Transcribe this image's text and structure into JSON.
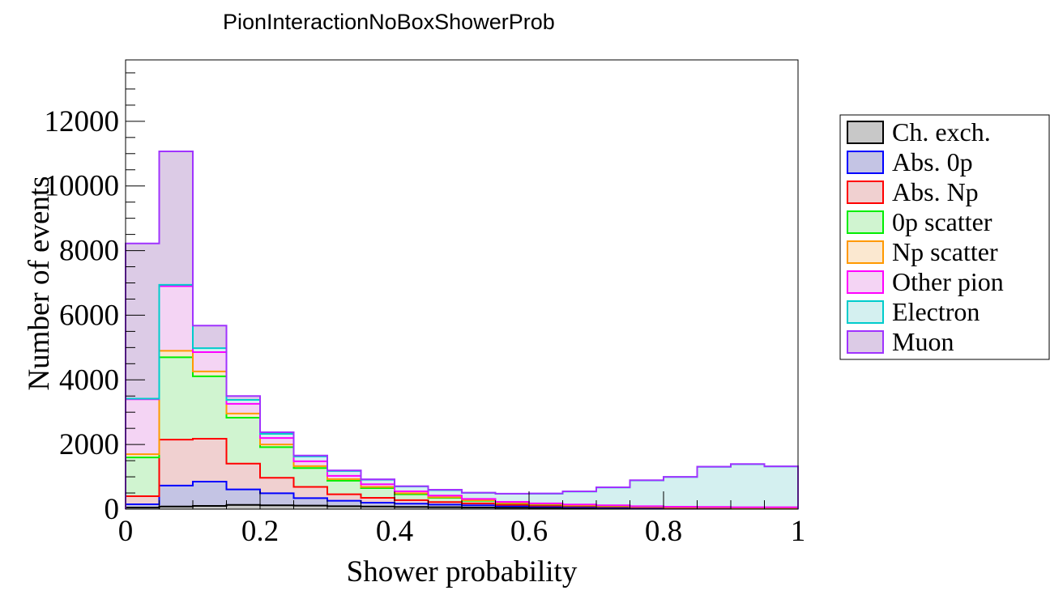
{
  "chart_data": {
    "type": "bar",
    "stacked": true,
    "histogram": true,
    "title": "PionInteractionNoBoxShowerProb",
    "xlabel": "Shower probability",
    "ylabel": "Number of events",
    "xlim": [
      0,
      1
    ],
    "ylim": [
      0,
      13900
    ],
    "bin_width": 0.05,
    "x_ticks": [
      0,
      0.2,
      0.4,
      0.6,
      0.8,
      1
    ],
    "x_tick_labels": [
      "0",
      "0.2",
      "0.4",
      "0.6",
      "0.8",
      "1"
    ],
    "y_ticks": [
      0,
      2000,
      4000,
      6000,
      8000,
      10000,
      12000
    ],
    "y_tick_labels": [
      "0",
      "2000",
      "4000",
      "6000",
      "8000",
      "10000",
      "12000"
    ],
    "legend_position": "right",
    "series": [
      {
        "name": "Ch. exch.",
        "color": "#000000",
        "fill": "#c8c8c8",
        "values": [
          50,
          80,
          100,
          130,
          120,
          110,
          90,
          80,
          70,
          60,
          50,
          45,
          40,
          35,
          30,
          25,
          20,
          20,
          15,
          15
        ]
      },
      {
        "name": "Abs. 0p",
        "color": "#0000ff",
        "fill": "#c4c4e4",
        "values": [
          100,
          650,
          750,
          480,
          370,
          230,
          170,
          120,
          100,
          80,
          70,
          50,
          40,
          30,
          25,
          20,
          15,
          15,
          10,
          10
        ]
      },
      {
        "name": "Abs. Np",
        "color": "#ff0000",
        "fill": "#f0d0d0",
        "values": [
          250,
          1420,
          1330,
          800,
          480,
          350,
          200,
          150,
          110,
          80,
          60,
          40,
          30,
          25,
          20,
          15,
          10,
          10,
          10,
          10
        ]
      },
      {
        "name": "0p scatter",
        "color": "#00ee00",
        "fill": "#d0f4d0",
        "values": [
          1200,
          2550,
          1930,
          1420,
          950,
          580,
          420,
          300,
          180,
          130,
          80,
          50,
          35,
          25,
          20,
          15,
          15,
          10,
          10,
          10
        ]
      },
      {
        "name": "Np scatter",
        "color": "#ff9900",
        "fill": "#fbe8d0",
        "values": [
          100,
          200,
          150,
          130,
          80,
          60,
          50,
          40,
          30,
          20,
          15,
          10,
          10,
          10,
          10,
          5,
          5,
          5,
          5,
          5
        ]
      },
      {
        "name": "Other pion",
        "color": "#ff00ff",
        "fill": "#f4d4f4",
        "values": [
          1700,
          2000,
          600,
          300,
          200,
          150,
          100,
          80,
          60,
          50,
          40,
          30,
          25,
          20,
          15,
          10,
          10,
          10,
          10,
          10
        ]
      },
      {
        "name": "Electron",
        "color": "#00cccc",
        "fill": "#d4f0f0",
        "values": [
          20,
          40,
          120,
          120,
          130,
          150,
          150,
          140,
          150,
          170,
          190,
          250,
          300,
          400,
          550,
          800,
          920,
          1240,
          1330,
          1260
        ]
      },
      {
        "name": "Muon",
        "color": "#a033ff",
        "fill": "#dccbe6",
        "values": [
          4800,
          4130,
          700,
          120,
          50,
          30,
          20,
          15,
          10,
          10,
          5,
          5,
          5,
          5,
          5,
          5,
          5,
          5,
          5,
          5
        ]
      }
    ]
  }
}
